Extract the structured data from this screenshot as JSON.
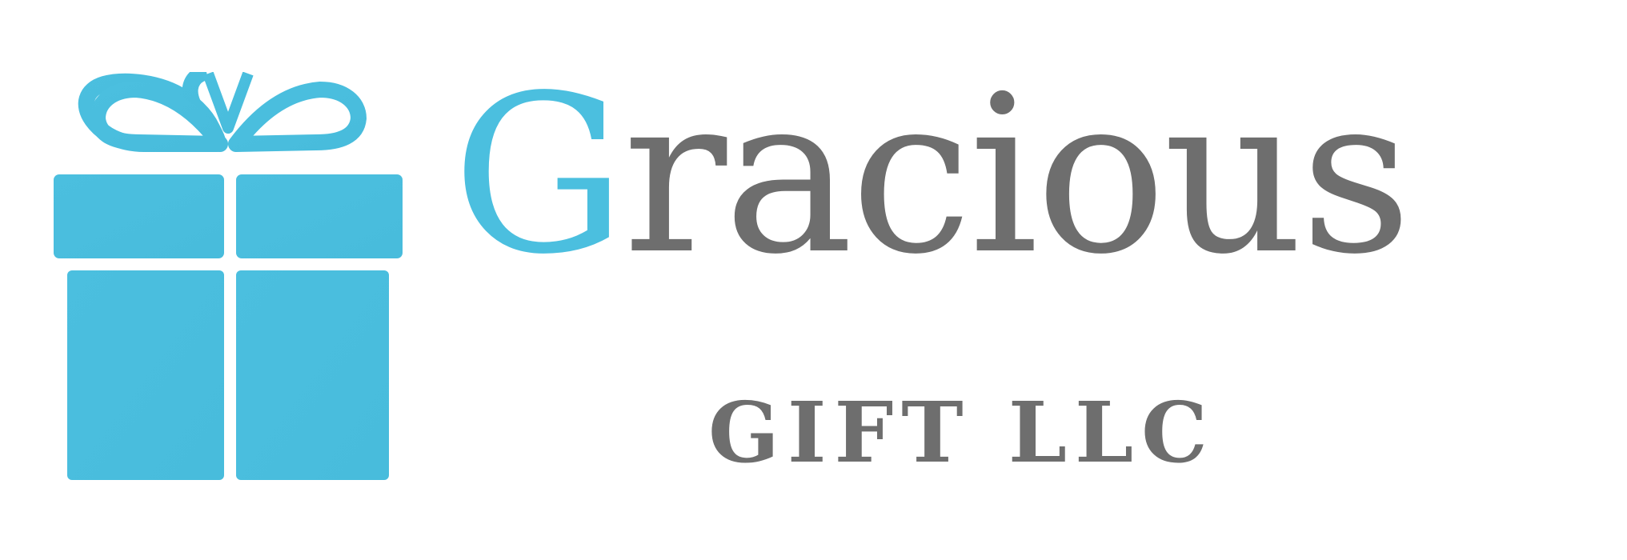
{
  "brand": {
    "name_initial": "G",
    "name_rest": "racious",
    "subtitle": "GIFT LLC",
    "icon": "gift-box-icon"
  },
  "colors": {
    "accent": "#4bbfdf",
    "text": "#6e6e6e",
    "background": "#ffffff"
  }
}
